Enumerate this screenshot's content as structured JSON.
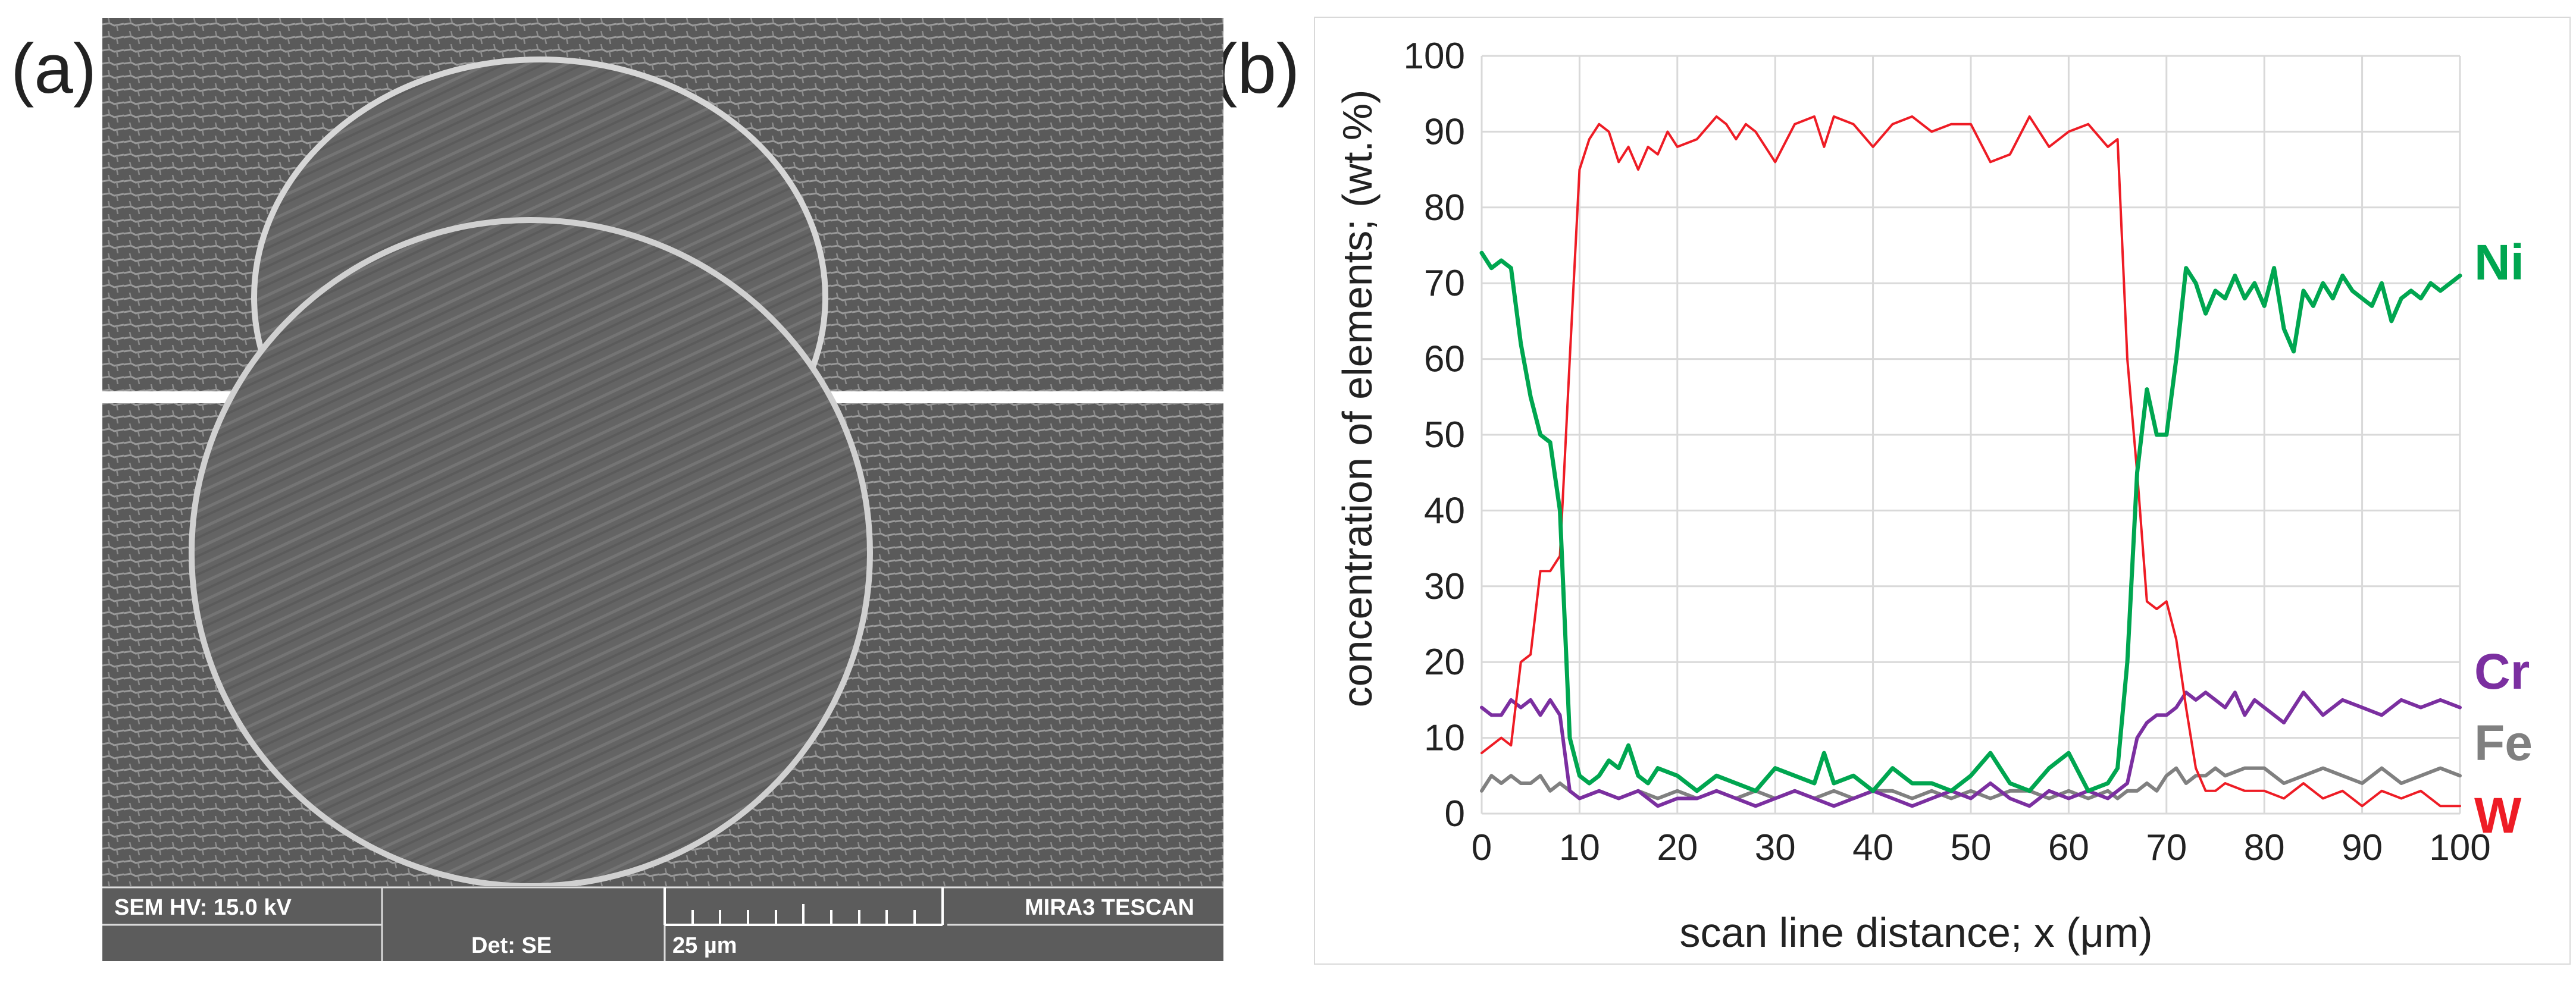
{
  "figure": {
    "panel_a_label": "(a)",
    "panel_b_label": "(b)"
  },
  "sem": {
    "hv": "SEM HV: 15.0 kV",
    "det": "Det: SE",
    "scale": "25 µm",
    "brand": "MIRA3 TESCAN"
  },
  "chart_data": {
    "type": "line",
    "xlabel": "scan line distance; x (μm)",
    "ylabel": "concentration of elements; (wt.%)",
    "xlim": [
      0,
      100
    ],
    "ylim": [
      0,
      100
    ],
    "xticks": [
      0,
      10,
      20,
      30,
      40,
      50,
      60,
      70,
      80,
      90,
      100
    ],
    "yticks": [
      0,
      10,
      20,
      30,
      40,
      50,
      60,
      70,
      80,
      90,
      100
    ],
    "grid": true,
    "series": [
      {
        "name": "W",
        "color": "#ee1c25",
        "x": [
          0,
          2,
          3,
          4,
          5,
          6,
          7,
          8,
          9,
          10,
          11,
          12,
          13,
          14,
          15,
          16,
          17,
          18,
          19,
          20,
          22,
          24,
          25,
          26,
          27,
          28,
          30,
          32,
          34,
          35,
          36,
          38,
          40,
          42,
          44,
          46,
          48,
          50,
          52,
          54,
          56,
          58,
          60,
          62,
          64,
          65,
          66,
          67,
          68,
          69,
          70,
          71,
          72,
          73,
          74,
          75,
          76,
          78,
          80,
          82,
          84,
          85,
          86,
          88,
          90,
          92,
          94,
          96,
          98,
          100
        ],
        "y": [
          8,
          10,
          9,
          20,
          21,
          32,
          32,
          34,
          60,
          85,
          89,
          91,
          90,
          86,
          88,
          85,
          88,
          87,
          90,
          88,
          89,
          92,
          91,
          89,
          91,
          90,
          86,
          91,
          92,
          88,
          92,
          91,
          88,
          91,
          92,
          90,
          91,
          91,
          86,
          87,
          92,
          88,
          90,
          91,
          88,
          89,
          60,
          45,
          28,
          27,
          28,
          23,
          14,
          6,
          3,
          3,
          4,
          3,
          3,
          2,
          4,
          3,
          2,
          3,
          1,
          3,
          2,
          3,
          1,
          1
        ]
      },
      {
        "name": "Ni",
        "color": "#00a650",
        "x": [
          0,
          1,
          2,
          3,
          4,
          5,
          6,
          7,
          8,
          9,
          10,
          11,
          12,
          13,
          14,
          15,
          16,
          17,
          18,
          20,
          22,
          24,
          26,
          28,
          30,
          32,
          34,
          35,
          36,
          38,
          40,
          42,
          44,
          46,
          48,
          50,
          52,
          54,
          56,
          58,
          60,
          62,
          64,
          65,
          66,
          67,
          68,
          69,
          70,
          71,
          72,
          73,
          74,
          75,
          76,
          77,
          78,
          79,
          80,
          81,
          82,
          83,
          84,
          85,
          86,
          87,
          88,
          89,
          90,
          91,
          92,
          93,
          94,
          95,
          96,
          97,
          98,
          99,
          100
        ],
        "y": [
          74,
          72,
          73,
          72,
          62,
          55,
          50,
          49,
          40,
          10,
          5,
          4,
          5,
          7,
          6,
          9,
          5,
          4,
          6,
          5,
          3,
          5,
          4,
          3,
          6,
          5,
          4,
          8,
          4,
          5,
          3,
          6,
          4,
          4,
          3,
          5,
          8,
          4,
          3,
          6,
          8,
          3,
          4,
          6,
          20,
          45,
          56,
          50,
          50,
          60,
          72,
          70,
          66,
          69,
          68,
          71,
          68,
          70,
          67,
          72,
          64,
          61,
          69,
          67,
          70,
          68,
          71,
          69,
          68,
          67,
          70,
          65,
          68,
          69,
          68,
          70,
          69,
          70,
          71
        ]
      },
      {
        "name": "Cr",
        "color": "#7b2fa0",
        "x": [
          0,
          1,
          2,
          3,
          4,
          5,
          6,
          7,
          8,
          9,
          10,
          12,
          14,
          16,
          18,
          20,
          22,
          24,
          26,
          28,
          30,
          32,
          34,
          36,
          38,
          40,
          42,
          44,
          46,
          48,
          50,
          52,
          54,
          56,
          58,
          60,
          62,
          64,
          65,
          66,
          67,
          68,
          69,
          70,
          71,
          72,
          73,
          74,
          75,
          76,
          77,
          78,
          79,
          80,
          82,
          84,
          86,
          88,
          90,
          92,
          94,
          96,
          98,
          100
        ],
        "y": [
          14,
          13,
          13,
          15,
          14,
          15,
          13,
          15,
          13,
          3,
          2,
          3,
          2,
          3,
          1,
          2,
          2,
          3,
          2,
          1,
          2,
          3,
          2,
          1,
          2,
          3,
          2,
          1,
          2,
          3,
          2,
          4,
          2,
          1,
          3,
          2,
          3,
          2,
          3,
          4,
          10,
          12,
          13,
          13,
          14,
          16,
          15,
          16,
          15,
          14,
          16,
          13,
          15,
          14,
          12,
          16,
          13,
          15,
          14,
          13,
          15,
          14,
          15,
          14
        ]
      },
      {
        "name": "Fe",
        "color": "#808080",
        "x": [
          0,
          1,
          2,
          3,
          4,
          5,
          6,
          7,
          8,
          9,
          10,
          12,
          14,
          16,
          18,
          20,
          22,
          24,
          26,
          28,
          30,
          32,
          34,
          36,
          38,
          40,
          42,
          44,
          46,
          48,
          50,
          52,
          54,
          56,
          58,
          60,
          62,
          64,
          65,
          66,
          67,
          68,
          69,
          70,
          71,
          72,
          73,
          74,
          75,
          76,
          78,
          80,
          82,
          84,
          86,
          88,
          90,
          92,
          94,
          96,
          98,
          100
        ],
        "y": [
          3,
          5,
          4,
          5,
          4,
          4,
          5,
          3,
          4,
          3,
          2,
          3,
          2,
          3,
          2,
          3,
          2,
          3,
          2,
          3,
          2,
          3,
          2,
          3,
          2,
          3,
          3,
          2,
          3,
          2,
          3,
          2,
          3,
          3,
          2,
          3,
          2,
          3,
          2,
          3,
          3,
          4,
          3,
          5,
          6,
          4,
          5,
          5,
          6,
          5,
          6,
          6,
          4,
          5,
          6,
          5,
          4,
          6,
          4,
          5,
          6,
          5
        ]
      }
    ]
  }
}
